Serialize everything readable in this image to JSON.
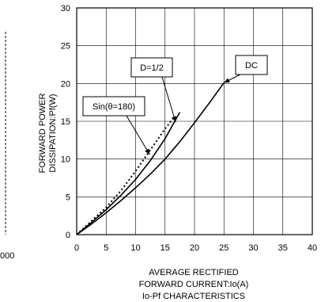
{
  "chart_data": {
    "type": "line",
    "xlabel": [
      "AVERAGE RECTIFIED",
      "FORWARD CURRENT:Io(A)"
    ],
    "ylabel": [
      "FORWARD POWER",
      "DISSIPATION:Pf(W)"
    ],
    "caption": "Io-Pf CHARACTERISTICS",
    "xlim": [
      0,
      40
    ],
    "ylim": [
      0,
      30
    ],
    "xticks": [
      0,
      5,
      10,
      15,
      20,
      25,
      30,
      35,
      40
    ],
    "yticks": [
      0,
      5,
      10,
      15,
      20,
      25,
      30
    ],
    "grid": true,
    "series": [
      {
        "name": "DC",
        "style": "solid",
        "x": [
          0,
          2.5,
          5,
          7.5,
          10,
          12.5,
          15,
          17.5,
          20,
          22.5,
          25
        ],
        "y": [
          0,
          1.4,
          2.9,
          4.5,
          6.2,
          8.0,
          10.0,
          12.3,
          14.8,
          17.4,
          20.1
        ]
      },
      {
        "name": "D=1/2",
        "style": "solid",
        "x": [
          0,
          2.5,
          5,
          7.5,
          10,
          12.5,
          15,
          17.5
        ],
        "y": [
          0,
          1.6,
          3.3,
          5.2,
          7.3,
          9.8,
          12.7,
          16.2
        ]
      },
      {
        "name": "Sin(θ=180)",
        "style": "dotted",
        "x": [
          0,
          2.5,
          5,
          7.5,
          10,
          12.5,
          15,
          16.5
        ],
        "y": [
          0,
          1.8,
          3.6,
          5.8,
          8.4,
          11.2,
          14.0,
          15.5
        ]
      }
    ],
    "callouts": [
      {
        "label": "DC",
        "series": "DC"
      },
      {
        "label": "D=1/2",
        "series": "D=1/2"
      },
      {
        "label": "Sin(θ=180)",
        "series": "Sin(θ=180)"
      }
    ]
  },
  "left_panel": {
    "tick_fragment": "000"
  }
}
